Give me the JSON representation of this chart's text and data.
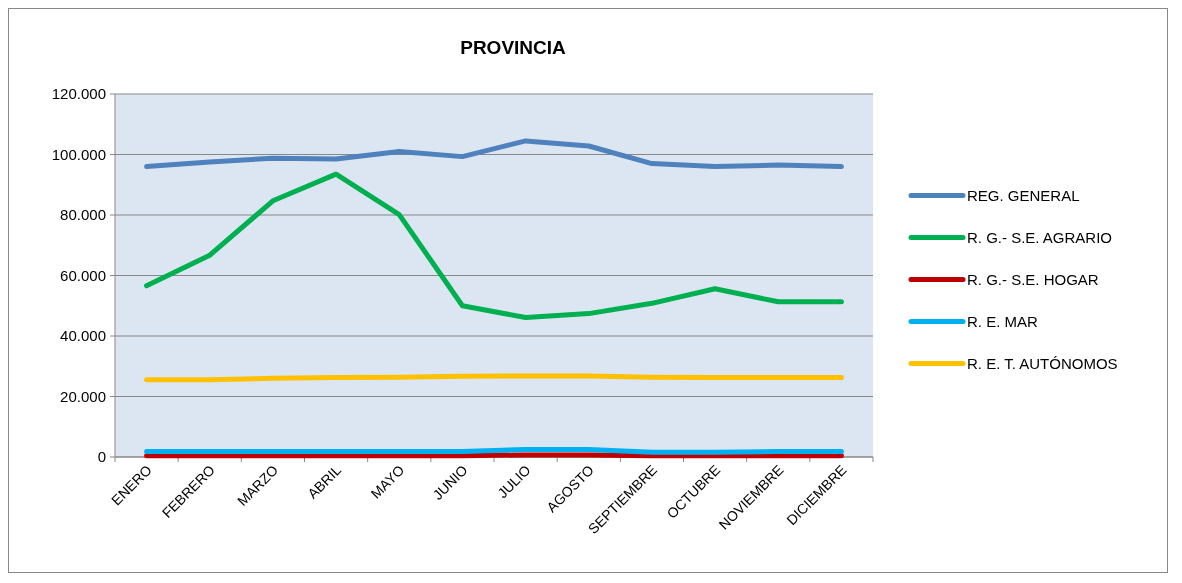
{
  "chart_data": {
    "type": "line",
    "title": "PROVINCIA",
    "categories": [
      "ENERO",
      "FEBRERO",
      "MARZO",
      "ABRIL",
      "MAYO",
      "JUNIO",
      "JULIO",
      "AGOSTO",
      "SEPTIEMBRE",
      "OCTUBRE",
      "NOVIEMBRE",
      "DICIEMBRE"
    ],
    "series": [
      {
        "name": "REG. GENERAL",
        "color": "#4f81bd",
        "values": [
          96000,
          97500,
          98800,
          98500,
          101000,
          99300,
          104500,
          102800,
          97000,
          96000,
          96500,
          96000
        ]
      },
      {
        "name": "R. G.- S.E. AGRARIO",
        "color": "#00b050",
        "values": [
          56600,
          66700,
          84700,
          93500,
          80100,
          50000,
          46100,
          47400,
          50800,
          55600,
          51300,
          51300
        ]
      },
      {
        "name": "R. G.- S.E. HOGAR",
        "color": "#c00000",
        "values": [
          400,
          400,
          400,
          400,
          400,
          400,
          700,
          700,
          400,
          400,
          400,
          400
        ]
      },
      {
        "name": "R. E. MAR",
        "color": "#00b0f0",
        "values": [
          1800,
          1800,
          1800,
          1800,
          1800,
          1800,
          2500,
          2500,
          1600,
          1600,
          1800,
          1800
        ]
      },
      {
        "name": "R. E. T. AUTÓNOMOS",
        "color": "#ffc000",
        "values": [
          25500,
          25500,
          26000,
          26300,
          26400,
          26700,
          26800,
          26800,
          26400,
          26300,
          26300,
          26300
        ]
      }
    ],
    "ylim": [
      0,
      120000
    ],
    "yticks": [
      {
        "value": 0,
        "label": "0"
      },
      {
        "value": 20000,
        "label": "20.000"
      },
      {
        "value": 40000,
        "label": "40.000"
      },
      {
        "value": 60000,
        "label": "60.000"
      },
      {
        "value": 80000,
        "label": "80.000"
      },
      {
        "value": 100000,
        "label": "100.000"
      },
      {
        "value": 120000,
        "label": "120.000"
      }
    ],
    "grid": "y",
    "legend": "right",
    "marker": "none",
    "line_style": "solid"
  }
}
